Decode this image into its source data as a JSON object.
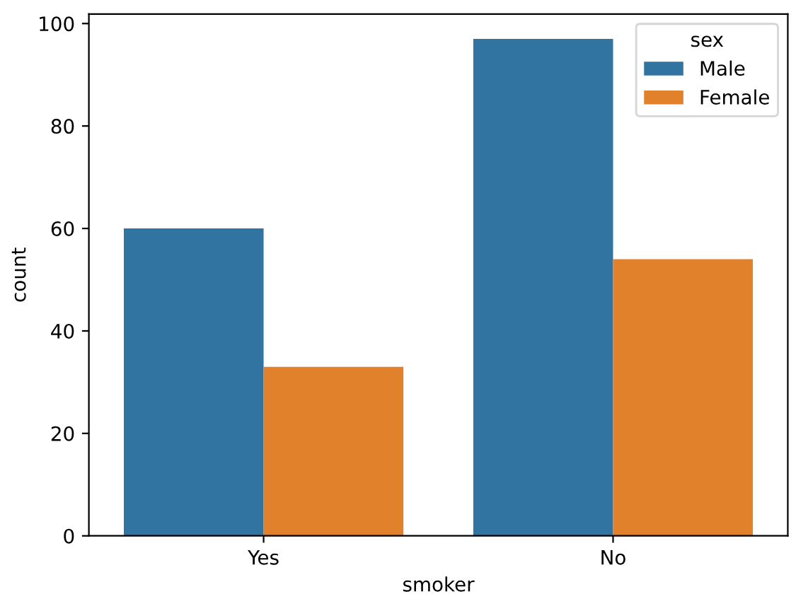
{
  "chart_data": {
    "type": "bar",
    "xlabel": "smoker",
    "ylabel": "count",
    "legend_title": "sex",
    "categories": [
      "Yes",
      "No"
    ],
    "series": [
      {
        "name": "Male",
        "color": "#3274a1",
        "values": [
          60,
          97
        ]
      },
      {
        "name": "Female",
        "color": "#e1812c",
        "values": [
          33,
          54
        ]
      }
    ],
    "ylim": [
      0,
      101.85
    ],
    "yticks": [
      0,
      20,
      40,
      60,
      80,
      100
    ],
    "grid": false,
    "legend": "top right"
  }
}
